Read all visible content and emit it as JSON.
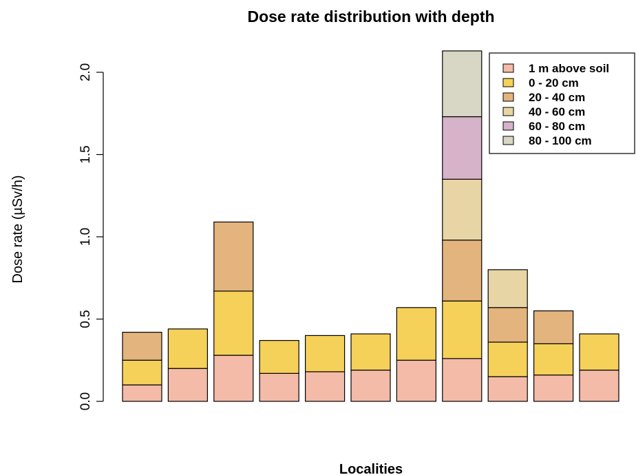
{
  "chart_data": {
    "type": "bar",
    "stacked": true,
    "title": "Dose rate distribution with depth",
    "xlabel": "Localities",
    "ylabel": "Dose rate (µSv/h)",
    "ylim": [
      0,
      2.1
    ],
    "yticks": [
      "0.0",
      "0.5",
      "1.0",
      "1.5",
      "2.0"
    ],
    "ytick_values": [
      0,
      0.5,
      1.0,
      1.5,
      2.0
    ],
    "grid": false,
    "legend_position": "top-right",
    "bar_count": 11,
    "series": [
      {
        "name": "1 m above soil",
        "color": "#f4bba8",
        "values": [
          0.1,
          0.2,
          0.28,
          0.17,
          0.18,
          0.19,
          0.25,
          0.26,
          0.15,
          0.16,
          0.19
        ]
      },
      {
        "name": "0 - 20 cm",
        "color": "#f5d15a",
        "values": [
          0.15,
          0.24,
          0.39,
          0.2,
          0.22,
          0.22,
          0.32,
          0.35,
          0.21,
          0.19,
          0.22
        ]
      },
      {
        "name": "20 - 40 cm",
        "color": "#e4b47e",
        "values": [
          0.17,
          0.0,
          0.42,
          0.0,
          0.0,
          0.0,
          0.0,
          0.37,
          0.21,
          0.2,
          0.0
        ]
      },
      {
        "name": "40 - 60 cm",
        "color": "#e8d5a5",
        "values": [
          0.0,
          0.0,
          0.0,
          0.0,
          0.0,
          0.0,
          0.0,
          0.37,
          0.23,
          0.0,
          0.0
        ]
      },
      {
        "name": "60 - 80 cm",
        "color": "#d6b3c9",
        "values": [
          0.0,
          0.0,
          0.0,
          0.0,
          0.0,
          0.0,
          0.0,
          0.38,
          0.0,
          0.0,
          0.0
        ]
      },
      {
        "name": "80 - 100 cm",
        "color": "#d8d6c4",
        "values": [
          0.0,
          0.0,
          0.0,
          0.0,
          0.0,
          0.0,
          0.0,
          0.4,
          0.0,
          0.0,
          0.0
        ]
      }
    ]
  }
}
